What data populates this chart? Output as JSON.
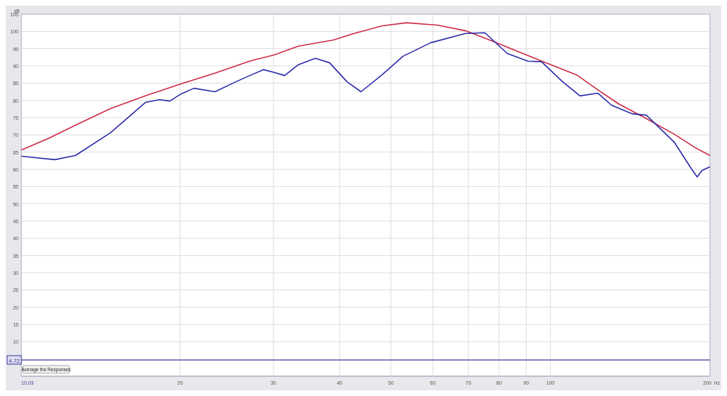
{
  "chart_data": {
    "type": "line",
    "xlabel": "Hz",
    "ylabel": "dB",
    "log": "x",
    "grid": true,
    "line_style": "solid",
    "marker": "none",
    "xlim": [
      10.03,
      200
    ],
    "ylim": [
      0,
      105
    ],
    "xticks": [
      {
        "value": 10.03,
        "label": "10.03"
      },
      20,
      30,
      40,
      50,
      60,
      70,
      80,
      90,
      100,
      200
    ],
    "yticks": [
      10,
      15,
      20,
      25,
      30,
      35,
      40,
      45,
      50,
      55,
      60,
      65,
      70,
      75,
      80,
      85,
      90,
      95,
      100,
      105
    ],
    "ref_lines": [
      {
        "axis": "y",
        "value": 4.72,
        "label": "4.72",
        "color": "#3a3a9a"
      }
    ],
    "annotations": [
      "Average the Responses"
    ],
    "series": [
      {
        "color": "#cc2a44",
        "x": [
          10.03,
          11.26,
          12.69,
          14.78,
          17.2,
          20.1,
          23.27,
          27.07,
          30.1,
          33.4,
          38.9,
          42.6,
          48.1,
          53.5,
          61.2,
          69.1,
          78.0,
          88.0,
          100.3,
          112,
          122.8,
          134.4,
          151.7,
          171.2,
          187.5,
          200
        ],
        "values": [
          65.6,
          68.9,
          72.8,
          77.6,
          81.3,
          84.8,
          87.9,
          91.4,
          93.2,
          95.7,
          97.5,
          99.4,
          101.6,
          102.5,
          101.8,
          100.2,
          97.1,
          93.8,
          90.3,
          87.4,
          83.1,
          79.0,
          74.7,
          70.2,
          66.3,
          64.0
        ]
      },
      {
        "color": "#2a2aa8",
        "x": [
          10.03,
          11.6,
          12.69,
          14.78,
          17.2,
          18.27,
          19.13,
          20.1,
          21.24,
          23.27,
          25.5,
          27.07,
          28.76,
          30.1,
          31.5,
          33.4,
          36.0,
          38.3,
          41.3,
          43.9,
          48.1,
          52.7,
          59.4,
          69.1,
          75.2,
          82.9,
          90.6,
          96.2,
          105.4,
          113.7,
          122.8,
          130.4,
          142.7,
          151.7,
          171.2,
          184.6,
          189.2,
          193.3,
          200
        ],
        "values": [
          63.8,
          62.8,
          64.0,
          70.6,
          79.4,
          80.2,
          79.8,
          81.9,
          83.5,
          82.5,
          85.4,
          87.2,
          88.9,
          88.1,
          87.2,
          90.3,
          92.2,
          90.9,
          85.4,
          82.5,
          87.4,
          92.8,
          96.7,
          99.4,
          99.6,
          93.6,
          91.4,
          91.2,
          85.4,
          81.3,
          82.1,
          78.6,
          76.1,
          75.7,
          67.9,
          60.1,
          57.8,
          59.7,
          60.7
        ]
      }
    ]
  }
}
